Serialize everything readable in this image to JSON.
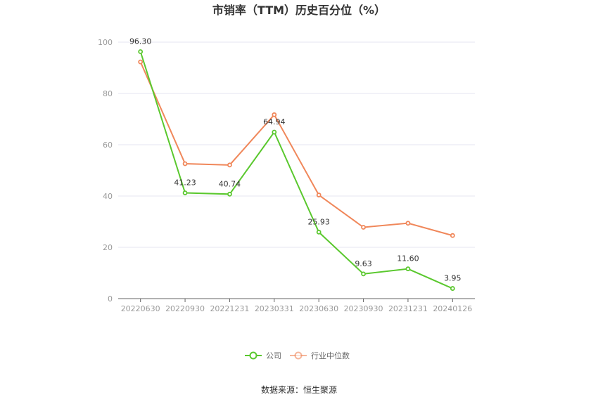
{
  "chart_data": {
    "type": "line",
    "title": "市销率（TTM）历史百分位（%）",
    "categories": [
      "20220630",
      "20220930",
      "20221231",
      "20230331",
      "20230630",
      "20230930",
      "20231231",
      "20240126"
    ],
    "series": [
      {
        "name": "公司",
        "color": "#5ac82e",
        "values": [
          96.3,
          41.23,
          40.74,
          64.94,
          25.93,
          9.63,
          11.6,
          3.95
        ],
        "labels": [
          "96.30",
          "41.23",
          "40.74",
          "64.94",
          "25.93",
          "9.63",
          "11.60",
          "3.95"
        ]
      },
      {
        "name": "行业中位数",
        "color": "#f0875a",
        "values": [
          92.3,
          52.6,
          52.1,
          71.7,
          40.4,
          27.8,
          29.4,
          24.6
        ]
      }
    ],
    "ylim": [
      0,
      100
    ],
    "yticks": [
      "0",
      "20",
      "40",
      "60",
      "80",
      "100"
    ],
    "grid": true,
    "legend_position": "bottom-center"
  },
  "source_text": "数据来源：恒生聚源"
}
